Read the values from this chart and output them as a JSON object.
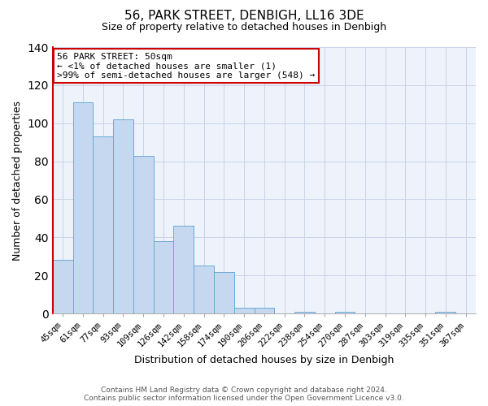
{
  "title": "56, PARK STREET, DENBIGH, LL16 3DE",
  "subtitle": "Size of property relative to detached houses in Denbigh",
  "xlabel": "Distribution of detached houses by size in Denbigh",
  "ylabel": "Number of detached properties",
  "categories": [
    "45sqm",
    "61sqm",
    "77sqm",
    "93sqm",
    "109sqm",
    "126sqm",
    "142sqm",
    "158sqm",
    "174sqm",
    "190sqm",
    "206sqm",
    "222sqm",
    "238sqm",
    "254sqm",
    "270sqm",
    "287sqm",
    "303sqm",
    "319sqm",
    "335sqm",
    "351sqm",
    "367sqm"
  ],
  "values": [
    28,
    111,
    93,
    102,
    83,
    38,
    46,
    25,
    22,
    3,
    3,
    0,
    1,
    0,
    1,
    0,
    0,
    0,
    0,
    1,
    0
  ],
  "bar_color": "#c5d8f0",
  "bar_edge_color": "#6aaad4",
  "ylim": [
    0,
    140
  ],
  "yticks": [
    0,
    20,
    40,
    60,
    80,
    100,
    120,
    140
  ],
  "annotation_title": "56 PARK STREET: 50sqm",
  "annotation_line1": "← <1% of detached houses are smaller (1)",
  "annotation_line2": ">99% of semi-detached houses are larger (548) →",
  "annotation_box_color": "#ffffff",
  "annotation_border_color": "#cc0000",
  "red_line_color": "#cc0000",
  "footer_line1": "Contains HM Land Registry data © Crown copyright and database right 2024.",
  "footer_line2": "Contains public sector information licensed under the Open Government Licence v3.0.",
  "background_color": "#ffffff",
  "plot_bg_color": "#eef3fb",
  "grid_color": "#c8d4e8",
  "title_fontsize": 11,
  "subtitle_fontsize": 9,
  "axis_label_fontsize": 9,
  "tick_fontsize": 7.5,
  "annotation_fontsize": 8,
  "footer_fontsize": 6.5
}
